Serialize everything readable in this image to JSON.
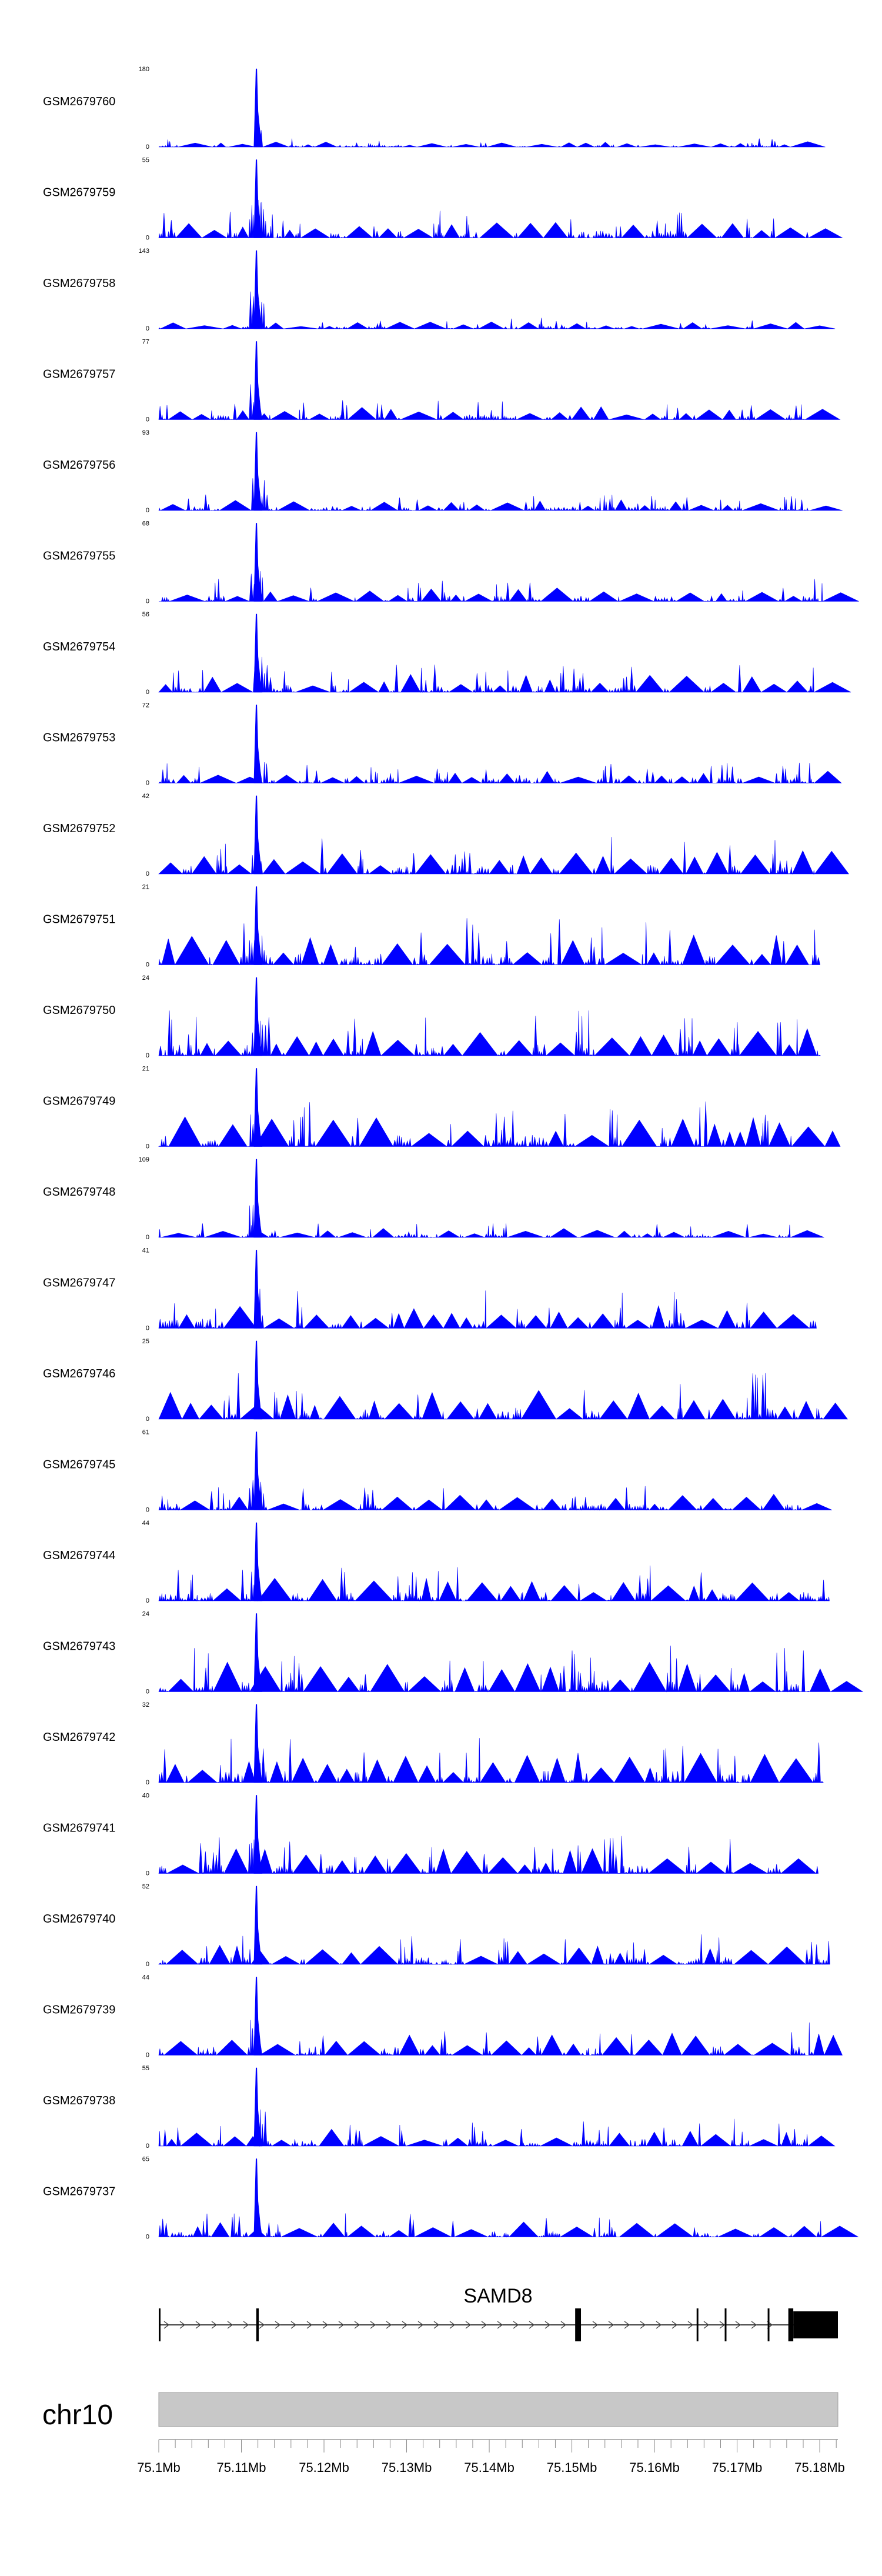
{
  "chart_data": {
    "type": "area",
    "colors": {
      "signal": "#0000ff",
      "ideogram": "#c8c8c8",
      "gene": "#000000",
      "text": "#000000"
    },
    "tracks": [
      {
        "name": "GSM2679760",
        "max": 180,
        "ymax_label": "180",
        "ymin_label": "0"
      },
      {
        "name": "GSM2679759",
        "max": 55,
        "ymax_label": "55",
        "ymin_label": "0"
      },
      {
        "name": "GSM2679758",
        "max": 143,
        "ymax_label": "143",
        "ymin_label": "0"
      },
      {
        "name": "GSM2679757",
        "max": 77,
        "ymax_label": "77",
        "ymin_label": "0"
      },
      {
        "name": "GSM2679756",
        "max": 93,
        "ymax_label": "93",
        "ymin_label": "0"
      },
      {
        "name": "GSM2679755",
        "max": 68,
        "ymax_label": "68",
        "ymin_label": "0"
      },
      {
        "name": "GSM2679754",
        "max": 56,
        "ymax_label": "56",
        "ymin_label": "0"
      },
      {
        "name": "GSM2679753",
        "max": 72,
        "ymax_label": "72",
        "ymin_label": "0"
      },
      {
        "name": "GSM2679752",
        "max": 42,
        "ymax_label": "42",
        "ymin_label": "0"
      },
      {
        "name": "GSM2679751",
        "max": 21,
        "ymax_label": "21",
        "ymin_label": "0"
      },
      {
        "name": "GSM2679750",
        "max": 24,
        "ymax_label": "24",
        "ymin_label": "0"
      },
      {
        "name": "GSM2679749",
        "max": 21,
        "ymax_label": "21",
        "ymin_label": "0"
      },
      {
        "name": "GSM2679748",
        "max": 109,
        "ymax_label": "109",
        "ymin_label": "0"
      },
      {
        "name": "GSM2679747",
        "max": 41,
        "ymax_label": "41",
        "ymin_label": "0"
      },
      {
        "name": "GSM2679746",
        "max": 25,
        "ymax_label": "25",
        "ymin_label": "0"
      },
      {
        "name": "GSM2679745",
        "max": 61,
        "ymax_label": "61",
        "ymin_label": "0"
      },
      {
        "name": "GSM2679744",
        "max": 44,
        "ymax_label": "44",
        "ymin_label": "0"
      },
      {
        "name": "GSM2679743",
        "max": 24,
        "ymax_label": "24",
        "ymin_label": "0"
      },
      {
        "name": "GSM2679742",
        "max": 32,
        "ymax_label": "32",
        "ymin_label": "0"
      },
      {
        "name": "GSM2679741",
        "max": 40,
        "ymax_label": "40",
        "ymin_label": "0"
      },
      {
        "name": "GSM2679740",
        "max": 52,
        "ymax_label": "52",
        "ymin_label": "0"
      },
      {
        "name": "GSM2679739",
        "max": 44,
        "ymax_label": "44",
        "ymin_label": "0"
      },
      {
        "name": "GSM2679738",
        "max": 55,
        "ymax_label": "55",
        "ymin_label": "0"
      },
      {
        "name": "GSM2679737",
        "max": 65,
        "ymax_label": "65",
        "ymin_label": "0"
      }
    ],
    "peak_position_mb": 75.1118,
    "gene": {
      "name": "SAMD8",
      "start_mb": 75.1,
      "end_mb": 75.1822,
      "strand": "+",
      "exons_mb": [
        [
          75.1,
          75.1002
        ],
        [
          75.1118,
          75.1121
        ],
        [
          75.1504,
          75.1511
        ],
        [
          75.1651,
          75.1653
        ],
        [
          75.1685,
          75.1687
        ],
        [
          75.1737,
          75.1739
        ],
        [
          75.1762,
          75.1768
        ],
        [
          75.1768,
          75.1822
        ]
      ]
    },
    "chromosome": "chr10",
    "x_axis": {
      "range_mb": [
        75.1,
        75.1822
      ],
      "ticks": [
        "75.1Mb",
        "75.11Mb",
        "75.12Mb",
        "75.13Mb",
        "75.14Mb",
        "75.15Mb",
        "75.16Mb",
        "75.17Mb",
        "75.18Mb"
      ],
      "tick_values_mb": [
        75.1,
        75.11,
        75.12,
        75.13,
        75.14,
        75.15,
        75.16,
        75.17,
        75.18
      ]
    }
  }
}
